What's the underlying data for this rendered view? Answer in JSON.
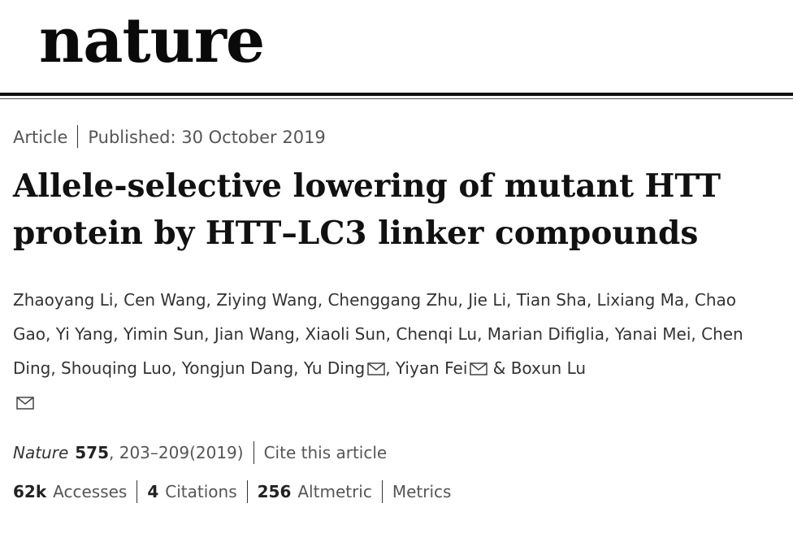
{
  "masthead": {
    "logo": "nature"
  },
  "article_meta": {
    "type": "Article",
    "published": "Published: 30 October 2019"
  },
  "title": {
    "line1": "Allele-selective lowering of mutant HTT",
    "line2": "protein by HTT–LC3 linker compounds"
  },
  "authors": {
    "list": "Zhaoyang Li, Cen Wang, Ziying Wang, Chenggang Zhu, Jie Li, Tian Sha, Lixiang Ma, Chao Gao, Yi Yang, Yimin Sun, Jian Wang, Xiaoli Sun, Chenqi Lu, Marian Difiglia, Yanai Mei, Chen Ding, Shouqing Luo, Yongjun Dang, ",
    "corresponding_1": "Yu Ding",
    "separator_1": ", ",
    "corresponding_2": "Yiyan Fei",
    "separator_2": " & ",
    "corresponding_3": "Boxun Lu"
  },
  "citation": {
    "journal": "Nature",
    "volume": "575",
    "pages": ", 203–209(2019)",
    "cite_link": "Cite this article"
  },
  "metrics": {
    "accesses_value": "62k",
    "accesses_label": "Accesses",
    "citations_value": "4",
    "citations_label": "Citations",
    "altmetric_value": "256",
    "altmetric_label": "Altmetric",
    "metrics_link": "Metrics"
  },
  "icons": {
    "email": "email-icon"
  },
  "colors": {
    "text_dark": "#111111",
    "text_muted": "#555555",
    "rule": "#111111"
  }
}
